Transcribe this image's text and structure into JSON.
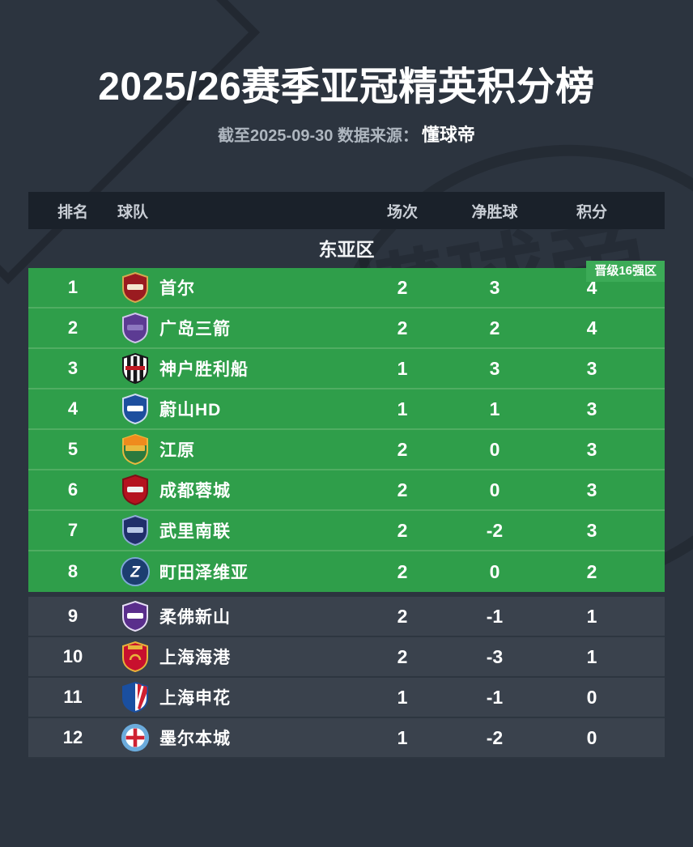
{
  "page": {
    "title": "2025/26赛季亚冠精英积分榜",
    "subtitle_prefix": "截至2025-09-30 数据来源：",
    "subtitle_source": "懂球帝",
    "watermark_text": "懂球帝"
  },
  "colors": {
    "background": "#2c343f",
    "header_bar": "#1a212a",
    "qualified_row_green": "#2f9e4a",
    "badge_green": "#3cab57",
    "normal_row": "#3a424d",
    "text_primary": "#ffffff",
    "text_secondary": "#c9ced5"
  },
  "table": {
    "columns": {
      "rank": "排名",
      "team": "球队",
      "played": "场次",
      "goal_diff": "净胜球",
      "points": "积分"
    },
    "section": "东亚区",
    "qualification_badge": "晋级16强区",
    "rows": [
      {
        "rank": "1",
        "team": "首尔",
        "played": "2",
        "gd": "3",
        "points": "4",
        "zone": "qualified",
        "logo": {
          "name": "seoul-crest-icon",
          "type": "shield",
          "colors": [
            "#9a1b20",
            "#d4a94e",
            "#f3e7cf"
          ]
        }
      },
      {
        "rank": "2",
        "team": "广岛三箭",
        "played": "2",
        "gd": "2",
        "points": "4",
        "zone": "qualified",
        "logo": {
          "name": "hiroshima-crest-icon",
          "type": "shield",
          "colors": [
            "#5c3b93",
            "#cfc5ea",
            "#8d77c0"
          ]
        }
      },
      {
        "rank": "3",
        "team": "神户胜利船",
        "played": "1",
        "gd": "3",
        "points": "3",
        "zone": "qualified",
        "logo": {
          "name": "kobe-crest-icon",
          "type": "shield_stripes",
          "colors": [
            "#17171a",
            "#ffffff",
            "#c01822"
          ]
        }
      },
      {
        "rank": "4",
        "team": "蔚山HD",
        "played": "1",
        "gd": "1",
        "points": "3",
        "zone": "qualified",
        "logo": {
          "name": "ulsan-crest-icon",
          "type": "shield",
          "colors": [
            "#1d4f9e",
            "#cfdcf0",
            "#ffffff"
          ]
        }
      },
      {
        "rank": "5",
        "team": "江原",
        "played": "2",
        "gd": "0",
        "points": "3",
        "zone": "qualified",
        "logo": {
          "name": "gangwon-crest-icon",
          "type": "shield_half",
          "colors": [
            "#ef8b1d",
            "#2b7a3e",
            "#e9b93e"
          ]
        }
      },
      {
        "rank": "6",
        "team": "成都蓉城",
        "played": "2",
        "gd": "0",
        "points": "3",
        "zone": "qualified",
        "logo": {
          "name": "chengdu-crest-icon",
          "type": "shield",
          "colors": [
            "#b5121f",
            "#7c0f16",
            "#f0f0f0"
          ]
        }
      },
      {
        "rank": "7",
        "team": "武里南联",
        "played": "2",
        "gd": "-2",
        "points": "3",
        "zone": "qualified",
        "logo": {
          "name": "buriram-crest-icon",
          "type": "shield",
          "colors": [
            "#202f6b",
            "#8fa9d8",
            "#b9c8e8"
          ]
        }
      },
      {
        "rank": "8",
        "team": "町田泽维亚",
        "played": "2",
        "gd": "0",
        "points": "2",
        "zone": "qualified",
        "logo": {
          "name": "machida-crest-icon",
          "type": "circle_letter",
          "colors": [
            "#1c3e70",
            "#7fa8d8",
            "#ffffff"
          ],
          "letter": "Z"
        }
      },
      {
        "rank": "9",
        "team": "柔佛新山",
        "played": "2",
        "gd": "-1",
        "points": "1",
        "zone": "normal",
        "logo": {
          "name": "johor-crest-icon",
          "type": "shield",
          "colors": [
            "#5a2e8c",
            "#e6def5",
            "#ffffff"
          ]
        }
      },
      {
        "rank": "10",
        "team": "上海海港",
        "played": "2",
        "gd": "-3",
        "points": "1",
        "zone": "normal",
        "logo": {
          "name": "shanghai-port-crest-icon",
          "type": "shield_top",
          "colors": [
            "#c8102e",
            "#8f0c20",
            "#e8b33a"
          ]
        }
      },
      {
        "rank": "11",
        "team": "上海申花",
        "played": "1",
        "gd": "-1",
        "points": "0",
        "zone": "normal",
        "logo": {
          "name": "shenhua-crest-icon",
          "type": "shield_split",
          "colors": [
            "#1a4fa0",
            "#d02030",
            "#ffffff"
          ]
        }
      },
      {
        "rank": "12",
        "team": "墨尔本城",
        "played": "1",
        "gd": "-2",
        "points": "0",
        "zone": "normal",
        "logo": {
          "name": "melbourne-city-crest-icon",
          "type": "circle_cross",
          "colors": [
            "#6babdc",
            "#ffffff",
            "#cf2232"
          ]
        }
      }
    ]
  }
}
